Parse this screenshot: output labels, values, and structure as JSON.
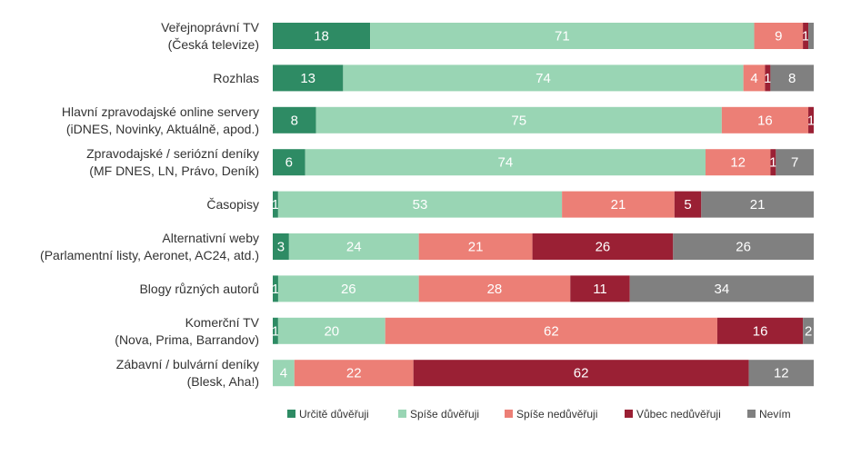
{
  "chart_data": {
    "type": "bar",
    "orientation": "horizontal-stacked-100",
    "categories": [
      "Veřejnoprávní TV\n(Česká televize)",
      "Rozhlas",
      "Hlavní zpravodajské online servery\n(iDNES, Novinky, Aktuálně, apod.)",
      "Zpravodajské / seriózní deníky\n(MF DNES, LN, Právo, Deník)",
      "Časopisy",
      "Alternativní weby\n(Parlamentní listy, Aeronet, AC24, atd.)",
      "Blogy různých autorů",
      "Komerční TV\n(Nova, Prima, Barrandov)",
      "Zábavní / bulvární deníky\n(Blesk, Aha!)"
    ],
    "series": [
      {
        "name": "Určitě důvěřuji",
        "color": "#2e8b64",
        "text_color": "#ffffff",
        "values": [
          18,
          13,
          8,
          6,
          1,
          3,
          1,
          1,
          0
        ]
      },
      {
        "name": "Spíše důvěřuji",
        "color": "#99d5b4",
        "text_color": "#ffffff",
        "values": [
          71,
          74,
          75,
          74,
          53,
          24,
          26,
          20,
          4
        ]
      },
      {
        "name": "Spíše nedůvěřuji",
        "color": "#ec7f76",
        "text_color": "#ffffff",
        "values": [
          9,
          4,
          16,
          12,
          21,
          21,
          28,
          62,
          22
        ]
      },
      {
        "name": "Vůbec nedůvěřuji",
        "color": "#9a2034",
        "text_color": "#ffffff",
        "values": [
          1,
          1,
          1,
          1,
          5,
          26,
          11,
          16,
          62
        ]
      },
      {
        "name": "Nevím",
        "color": "#808080",
        "text_color": "#ffffff",
        "values": [
          1,
          8,
          0,
          7,
          21,
          26,
          34,
          2,
          12
        ]
      }
    ],
    "value_labels_shown": [
      [
        true,
        true,
        true,
        true,
        false
      ],
      [
        true,
        true,
        true,
        true,
        true
      ],
      [
        true,
        true,
        true,
        true,
        false
      ],
      [
        true,
        true,
        true,
        true,
        true
      ],
      [
        true,
        true,
        true,
        true,
        true
      ],
      [
        true,
        true,
        true,
        true,
        true
      ],
      [
        true,
        true,
        true,
        true,
        true
      ],
      [
        true,
        true,
        true,
        true,
        true
      ],
      [
        false,
        true,
        true,
        true,
        true
      ]
    ],
    "title": "",
    "xlabel": "",
    "ylabel": "",
    "legend_position": "bottom",
    "grid": false
  }
}
